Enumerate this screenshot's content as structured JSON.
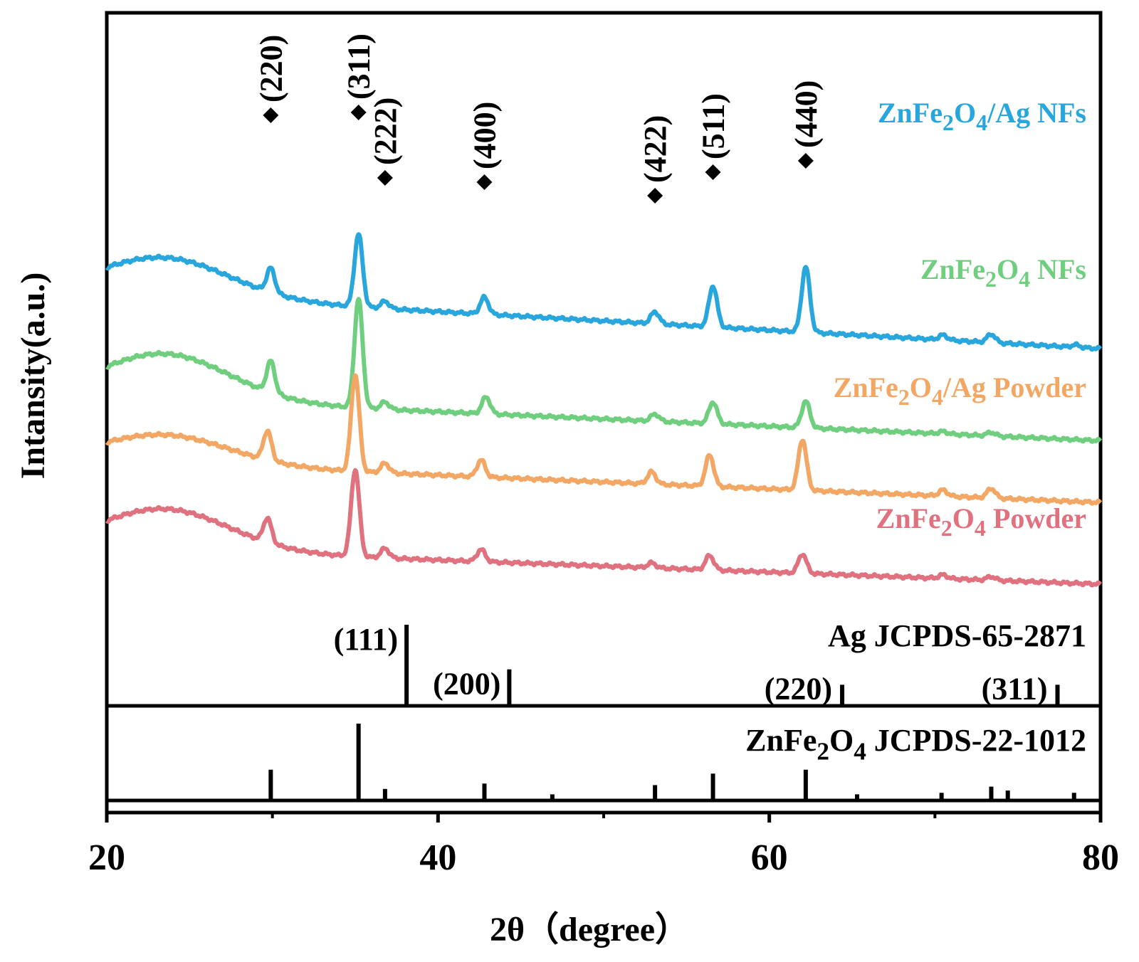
{
  "chart_data": {
    "type": "line",
    "title": "",
    "xlabel": "2θ（degree）",
    "ylabel": "Intansity(a.u.)",
    "xlim": [
      20,
      80
    ],
    "x_ticks": [
      20,
      40,
      60,
      80
    ],
    "x_minor_ticks": [
      30,
      50,
      70
    ],
    "grid": false,
    "colors": {
      "ag_nfs": "#29a6dc",
      "nfs": "#6fcf7f",
      "ag_powder": "#f2a765",
      "powder": "#e0717e",
      "reference": "#000000"
    },
    "series": [
      {
        "id": "ag_nfs",
        "name_main": "ZnFe",
        "name_sub1": "2",
        "name_mid": "O",
        "name_sub2": "4",
        "name_tail": "/Ag NFs",
        "offset": 11.5,
        "hump": 1.6,
        "start": 1.8,
        "end": -0.5,
        "peaks": [
          [
            29.9,
            1.0
          ],
          [
            35.2,
            3.0
          ],
          [
            36.8,
            0.3
          ],
          [
            42.8,
            0.7
          ],
          [
            53.1,
            0.5
          ],
          [
            56.6,
            1.7
          ],
          [
            62.2,
            2.7
          ],
          [
            70.5,
            0.2
          ],
          [
            73.4,
            0.35
          ],
          [
            78.5,
            0.1
          ]
        ]
      },
      {
        "id": "nfs",
        "name_main": "ZnFe",
        "name_sub1": "2",
        "name_mid": "O",
        "name_sub2": "4",
        "name_tail": " NFs",
        "offset": 7.8,
        "hump": 1.9,
        "start": 1.3,
        "end": -0.5,
        "peaks": [
          [
            29.9,
            1.3
          ],
          [
            35.2,
            4.5
          ],
          [
            36.8,
            0.3
          ],
          [
            42.9,
            0.7
          ],
          [
            53.1,
            0.3
          ],
          [
            56.6,
            0.9
          ],
          [
            62.2,
            1.1
          ],
          [
            70.5,
            0.1
          ],
          [
            73.4,
            0.15
          ]
        ]
      },
      {
        "id": "ag_powder",
        "name_main": "ZnFe",
        "name_sub1": "2",
        "name_mid": "O",
        "name_sub2": "4",
        "name_tail": "/Ag Powder",
        "offset": 5.0,
        "hump": 1.2,
        "start": 1.2,
        "end": -0.5,
        "peaks": [
          [
            29.7,
            1.2
          ],
          [
            35.0,
            4.0
          ],
          [
            36.8,
            0.4
          ],
          [
            42.6,
            0.7
          ],
          [
            52.9,
            0.5
          ],
          [
            56.4,
            1.3
          ],
          [
            62.0,
            2.1
          ],
          [
            70.5,
            0.25
          ],
          [
            73.4,
            0.4
          ]
        ]
      },
      {
        "id": "powder",
        "name_main": "ZnFe",
        "name_sub1": "2",
        "name_mid": "O",
        "name_sub2": "4",
        "name_tail": " Powder",
        "offset": 1.8,
        "hump": 1.7,
        "start": 1.0,
        "end": -0.5,
        "peaks": [
          [
            29.7,
            1.0
          ],
          [
            35.0,
            3.6
          ],
          [
            36.8,
            0.4
          ],
          [
            42.6,
            0.5
          ],
          [
            52.9,
            0.2
          ],
          [
            56.4,
            0.6
          ],
          [
            62.0,
            0.8
          ],
          [
            70.5,
            0.15
          ],
          [
            73.4,
            0.15
          ]
        ]
      }
    ],
    "peak_annotations": [
      {
        "x": 29.9,
        "label": "(220)",
        "level": 1
      },
      {
        "x": 35.2,
        "label": "(311)",
        "level": 1
      },
      {
        "x": 36.8,
        "label": "(222)",
        "level": 2
      },
      {
        "x": 42.8,
        "label": "(400)",
        "level": 2
      },
      {
        "x": 53.1,
        "label": "(422)",
        "level": 3
      },
      {
        "x": 56.6,
        "label": "(511)",
        "level": 2
      },
      {
        "x": 62.2,
        "label": "(440)",
        "level": 1
      }
    ],
    "ag_reference": {
      "title": "Ag JCPDS-65-2871",
      "lines": [
        {
          "x": 38.1,
          "intensity": 100,
          "label": "(111)"
        },
        {
          "x": 44.3,
          "intensity": 45,
          "label": "(200)"
        },
        {
          "x": 64.4,
          "intensity": 26,
          "label": "(220)"
        },
        {
          "x": 77.4,
          "intensity": 26,
          "label": "(311)"
        }
      ]
    },
    "znfe2o4_reference": {
      "title_main": "ZnFe",
      "title_sub1": "2",
      "title_mid": "O",
      "title_sub2": "4",
      "title_tail": " JCPDS-22-1012",
      "lines": [
        {
          "x": 29.9,
          "intensity": 40
        },
        {
          "x": 35.2,
          "intensity": 100
        },
        {
          "x": 36.8,
          "intensity": 15
        },
        {
          "x": 42.8,
          "intensity": 22
        },
        {
          "x": 46.9,
          "intensity": 8
        },
        {
          "x": 53.1,
          "intensity": 20
        },
        {
          "x": 56.6,
          "intensity": 35
        },
        {
          "x": 62.2,
          "intensity": 40
        },
        {
          "x": 65.3,
          "intensity": 8
        },
        {
          "x": 70.4,
          "intensity": 10
        },
        {
          "x": 73.4,
          "intensity": 18
        },
        {
          "x": 74.4,
          "intensity": 13
        },
        {
          "x": 78.4,
          "intensity": 10
        }
      ]
    }
  }
}
